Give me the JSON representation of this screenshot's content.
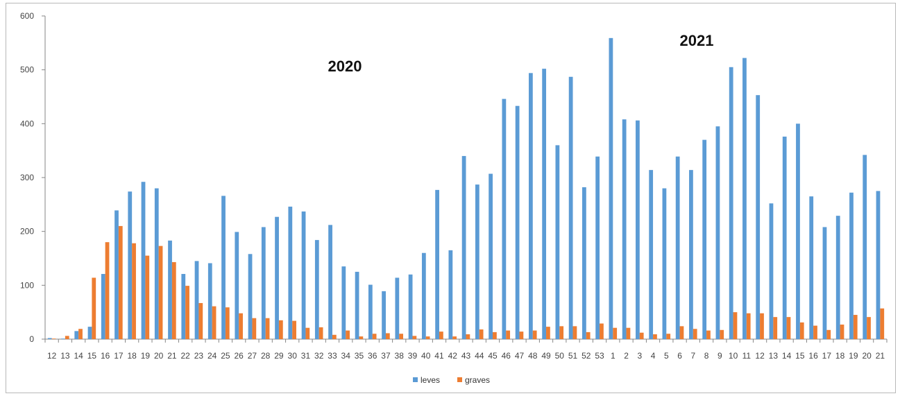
{
  "chart_data": {
    "type": "bar",
    "ylim": [
      0,
      600
    ],
    "yticks": [
      0,
      100,
      200,
      300,
      400,
      500,
      600
    ],
    "grid": false,
    "legend_position": "bottom",
    "categories": [
      "12",
      "13",
      "14",
      "15",
      "16",
      "17",
      "18",
      "19",
      "20",
      "21",
      "22",
      "23",
      "24",
      "25",
      "26",
      "27",
      "28",
      "29",
      "30",
      "31",
      "32",
      "33",
      "34",
      "35",
      "36",
      "37",
      "38",
      "39",
      "40",
      "41",
      "42",
      "43",
      "44",
      "45",
      "46",
      "47",
      "48",
      "49",
      "50",
      "51",
      "52",
      "53",
      "1",
      "2",
      "3",
      "4",
      "5",
      "6",
      "7",
      "8",
      "9",
      "10",
      "11",
      "12",
      "13",
      "14",
      "15",
      "16",
      "17",
      "18",
      "19",
      "20",
      "21"
    ],
    "series": [
      {
        "name": "leves",
        "color": "#5B9BD5",
        "values": [
          2,
          1,
          15,
          23,
          121,
          239,
          274,
          292,
          280,
          183,
          121,
          145,
          141,
          266,
          199,
          158,
          208,
          227,
          246,
          237,
          184,
          212,
          135,
          125,
          101,
          89,
          114,
          120,
          160,
          277,
          165,
          340,
          287,
          307,
          446,
          433,
          494,
          502,
          360,
          487,
          282,
          339,
          559,
          408,
          406,
          314,
          280,
          339,
          314,
          370,
          395,
          505,
          522,
          453,
          252,
          376,
          400,
          265,
          208,
          229,
          272,
          342,
          275
        ]
      },
      {
        "name": "graves",
        "color": "#ED7D31",
        "values": [
          1,
          6,
          19,
          114,
          180,
          210,
          178,
          155,
          173,
          143,
          99,
          67,
          61,
          59,
          48,
          39,
          39,
          35,
          34,
          21,
          22,
          8,
          16,
          5,
          10,
          11,
          10,
          6,
          5,
          14,
          5,
          9,
          18,
          13,
          16,
          14,
          16,
          23,
          24,
          24,
          13,
          29,
          21,
          21,
          12,
          9,
          10,
          24,
          19,
          16,
          17,
          50,
          48,
          48,
          41,
          41,
          31,
          25,
          17,
          27,
          45,
          41,
          57
        ]
      }
    ],
    "annotations": [
      "2020",
      "2021"
    ]
  }
}
